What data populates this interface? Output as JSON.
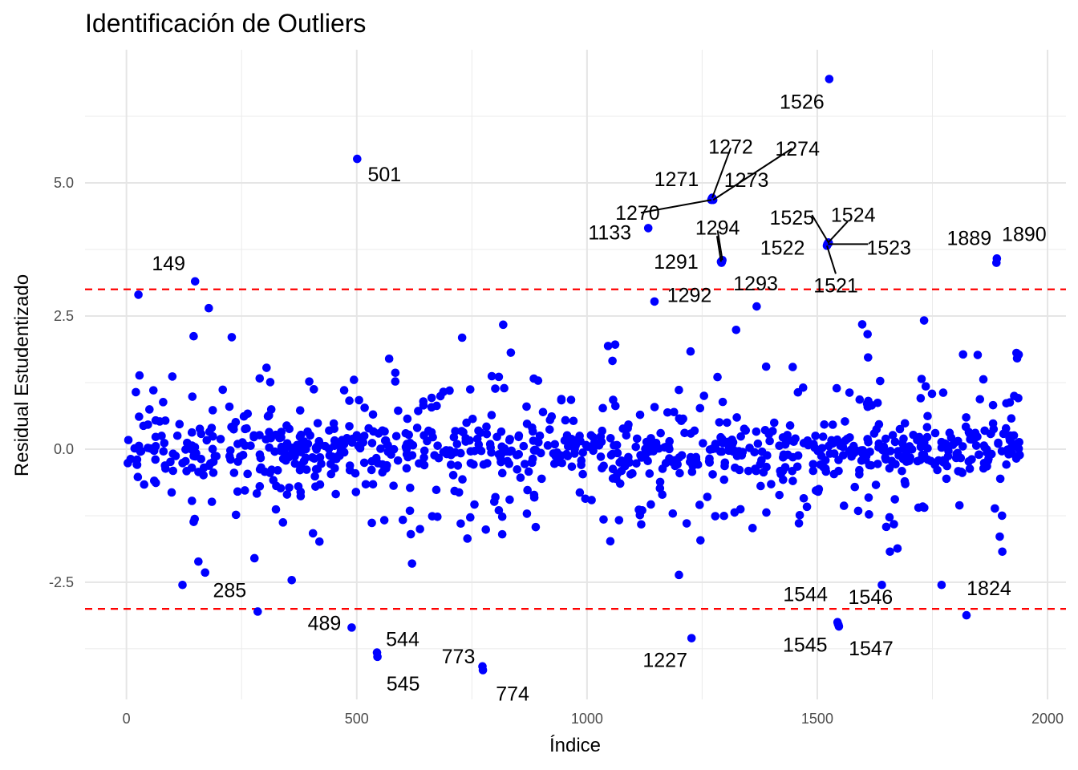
{
  "chart_data": {
    "type": "scatter",
    "title": "Identificación de Outliers",
    "xlabel": "Índice",
    "ylabel": "Residual Estudentizado",
    "xlim": [
      -90,
      2040
    ],
    "ylim": [
      -4.7,
      7.5
    ],
    "x_ticks": [
      0,
      500,
      1000,
      1500,
      2000
    ],
    "y_ticks": [
      -2.5,
      0.0,
      2.5,
      5.0
    ],
    "y_tick_labels": [
      "-2.5",
      "0.0",
      "2.5",
      "5.0"
    ],
    "grid": true,
    "point_color": "#0000ff",
    "threshold_color": "#ff0000",
    "thresholds": [
      3,
      -3
    ],
    "labeled_points": [
      {
        "label": "149",
        "x": 149,
        "y": 3.15
      },
      {
        "label": "285",
        "x": 285,
        "y": -3.05
      },
      {
        "label": "489",
        "x": 489,
        "y": -3.35
      },
      {
        "label": "501",
        "x": 501,
        "y": 5.45
      },
      {
        "label": "544",
        "x": 544,
        "y": -3.82
      },
      {
        "label": "545",
        "x": 545,
        "y": -3.9
      },
      {
        "label": "773",
        "x": 773,
        "y": -4.08
      },
      {
        "label": "774",
        "x": 774,
        "y": -4.15
      },
      {
        "label": "1133",
        "x": 1133,
        "y": 4.15
      },
      {
        "label": "1227",
        "x": 1227,
        "y": -3.55
      },
      {
        "label": "1270",
        "x": 1270,
        "y": 4.68
      },
      {
        "label": "1271",
        "x": 1271,
        "y": 4.7
      },
      {
        "label": "1272",
        "x": 1272,
        "y": 4.72
      },
      {
        "label": "1273",
        "x": 1273,
        "y": 4.7
      },
      {
        "label": "1274",
        "x": 1274,
        "y": 4.68
      },
      {
        "label": "1291",
        "x": 1291,
        "y": 3.52
      },
      {
        "label": "1292",
        "x": 1292,
        "y": 3.5
      },
      {
        "label": "1293",
        "x": 1293,
        "y": 3.52
      },
      {
        "label": "1294",
        "x": 1294,
        "y": 3.55
      },
      {
        "label": "1521",
        "x": 1521,
        "y": 3.82
      },
      {
        "label": "1522",
        "x": 1522,
        "y": 3.85
      },
      {
        "label": "1523",
        "x": 1523,
        "y": 3.85
      },
      {
        "label": "1524",
        "x": 1524,
        "y": 3.88
      },
      {
        "label": "1525",
        "x": 1525,
        "y": 3.87
      },
      {
        "label": "1526",
        "x": 1526,
        "y": 6.95
      },
      {
        "label": "1544",
        "x": 1544,
        "y": -3.25
      },
      {
        "label": "1545",
        "x": 1545,
        "y": -3.28
      },
      {
        "label": "1546",
        "x": 1546,
        "y": -3.3
      },
      {
        "label": "1547",
        "x": 1547,
        "y": -3.33
      },
      {
        "label": "1824",
        "x": 1824,
        "y": -3.12
      },
      {
        "label": "1889",
        "x": 1889,
        "y": 3.5
      },
      {
        "label": "1890",
        "x": 1890,
        "y": 3.58
      }
    ]
  }
}
